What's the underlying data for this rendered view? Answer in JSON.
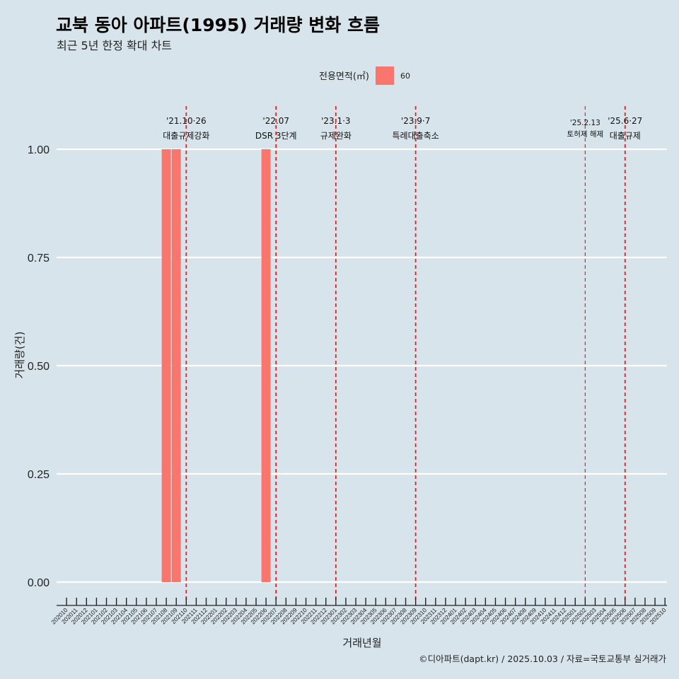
{
  "chart_data": {
    "type": "bar",
    "title": "교북 동아 아파트(1995) 거래량 변화 흐름",
    "subtitle": "최근 5년 한정 확대 차트",
    "xlabel": "거래년월",
    "ylabel": "거래량(건)",
    "ylim": [
      0,
      1
    ],
    "y_ticks": [
      "0.00",
      "0.25",
      "0.50",
      "0.75",
      "1.00"
    ],
    "legend": {
      "title": "전용면적(㎡)",
      "items": [
        {
          "label": "60",
          "color": "#f8766d"
        }
      ],
      "position": "top"
    },
    "categories": [
      "202010",
      "202011",
      "202012",
      "202101",
      "202102",
      "202103",
      "202104",
      "202105",
      "202106",
      "202107",
      "202108",
      "202109",
      "202110",
      "202111",
      "202112",
      "202201",
      "202202",
      "202203",
      "202204",
      "202205",
      "202206",
      "202207",
      "202208",
      "202209",
      "202210",
      "202211",
      "202212",
      "202301",
      "202302",
      "202303",
      "202304",
      "202305",
      "202306",
      "202307",
      "202308",
      "202309",
      "202310",
      "202311",
      "202312",
      "202401",
      "202402",
      "202403",
      "202404",
      "202405",
      "202406",
      "202407",
      "202408",
      "202409",
      "202410",
      "202411",
      "202412",
      "202501",
      "202502",
      "202503",
      "202504",
      "202505",
      "202506",
      "202507",
      "202508",
      "202509",
      "202510"
    ],
    "series": [
      {
        "name": "60",
        "color": "#f8766d",
        "values": [
          0,
          0,
          0,
          0,
          0,
          0,
          0,
          0,
          0,
          0,
          1,
          1,
          0,
          0,
          0,
          0,
          0,
          0,
          0,
          0,
          1,
          0,
          0,
          0,
          0,
          0,
          0,
          0,
          0,
          0,
          0,
          0,
          0,
          0,
          0,
          0,
          0,
          0,
          0,
          0,
          0,
          0,
          0,
          0,
          0,
          0,
          0,
          0,
          0,
          0,
          0,
          0,
          0,
          0,
          0,
          0,
          0,
          0,
          0,
          0,
          0
        ]
      }
    ],
    "events": [
      {
        "at": "202110",
        "label1": "'21.10·26",
        "label2": "대출규제강화",
        "small": false
      },
      {
        "at": "202207",
        "label1": "'22.07",
        "label2": "DSR 3단계",
        "small": false
      },
      {
        "at": "202301",
        "label1": "'23.1·3",
        "label2": "규제완화",
        "small": false
      },
      {
        "at": "202309",
        "label1": "'23.9·7",
        "label2": "특례대출축소",
        "small": false
      },
      {
        "at": "202502",
        "label1": "'25.2.13",
        "label2": "토허제 해제",
        "small": true
      },
      {
        "at": "202506",
        "label1": "'25.6·27",
        "label2": "대출규제",
        "small": false
      }
    ],
    "caption": "©디아파트(dapt.kr) / 2025.10.03 / 자료=국토교통부 실거래가"
  }
}
